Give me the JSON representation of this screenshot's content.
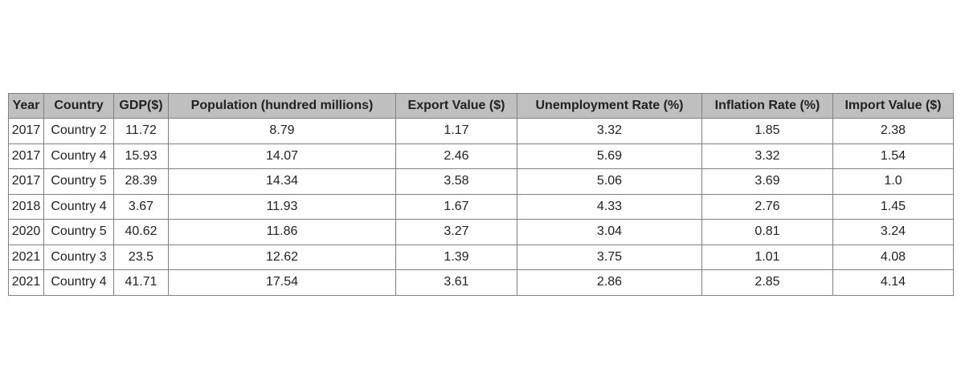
{
  "chart_data": {
    "type": "table",
    "columns": [
      "Year",
      "Country",
      "GDP($)",
      "Population (hundred millions)",
      "Export Value ($)",
      "Unemployment Rate (%)",
      "Inflation Rate (%)",
      "Import Value ($)"
    ],
    "rows": [
      [
        "2017",
        "Country 2",
        "11.72",
        "8.79",
        "1.17",
        "3.32",
        "1.85",
        "2.38"
      ],
      [
        "2017",
        "Country 4",
        "15.93",
        "14.07",
        "2.46",
        "5.69",
        "3.32",
        "1.54"
      ],
      [
        "2017",
        "Country 5",
        "28.39",
        "14.34",
        "3.58",
        "5.06",
        "3.69",
        "1.0"
      ],
      [
        "2018",
        "Country 4",
        "3.67",
        "11.93",
        "1.67",
        "4.33",
        "2.76",
        "1.45"
      ],
      [
        "2020",
        "Country 5",
        "40.62",
        "11.86",
        "3.27",
        "3.04",
        "0.81",
        "3.24"
      ],
      [
        "2021",
        "Country 3",
        "23.5",
        "12.62",
        "1.39",
        "3.75",
        "1.01",
        "4.08"
      ],
      [
        "2021",
        "Country 4",
        "41.71",
        "17.54",
        "3.61",
        "2.86",
        "2.85",
        "4.14"
      ]
    ],
    "colors": {
      "header_background": "#bfbfbf",
      "cell_background": "#ffffff",
      "border": "#808080",
      "text": "#222222"
    }
  }
}
